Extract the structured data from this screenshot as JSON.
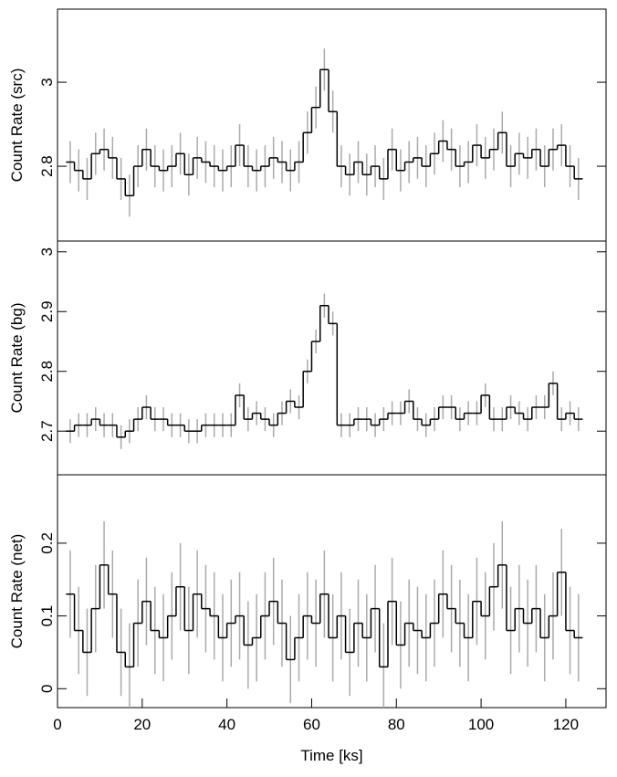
{
  "chart_data": [
    {
      "type": "step",
      "ylabel": "Count Rate (src)",
      "color": "#000000",
      "error_color": "#aaaaaa",
      "error": 0.05,
      "xlim": [
        0,
        129.5
      ],
      "ylim": [
        2.622,
        3.174
      ],
      "yticks": [
        2.8,
        3
      ],
      "x": [
        3,
        5,
        7,
        9,
        11,
        13,
        15,
        17,
        19,
        21,
        23,
        25,
        27,
        29,
        31,
        33,
        35,
        37,
        39,
        41,
        43,
        45,
        47,
        49,
        51,
        53,
        55,
        57,
        59,
        61,
        63,
        65,
        67,
        69,
        71,
        73,
        75,
        77,
        79,
        81,
        83,
        85,
        87,
        89,
        91,
        93,
        95,
        97,
        99,
        101,
        103,
        105,
        107,
        109,
        111,
        113,
        115,
        117,
        119,
        121,
        123
      ],
      "values": [
        2.81,
        2.79,
        2.77,
        2.83,
        2.84,
        2.82,
        2.77,
        2.73,
        2.8,
        2.84,
        2.8,
        2.79,
        2.8,
        2.83,
        2.78,
        2.82,
        2.81,
        2.8,
        2.79,
        2.8,
        2.85,
        2.8,
        2.79,
        2.8,
        2.82,
        2.81,
        2.79,
        2.81,
        2.88,
        2.94,
        3.03,
        2.93,
        2.8,
        2.78,
        2.81,
        2.78,
        2.8,
        2.77,
        2.84,
        2.79,
        2.81,
        2.82,
        2.8,
        2.83,
        2.86,
        2.84,
        2.8,
        2.81,
        2.85,
        2.82,
        2.84,
        2.88,
        2.8,
        2.83,
        2.82,
        2.84,
        2.8,
        2.84,
        2.85,
        2.8,
        2.77
      ]
    },
    {
      "type": "step",
      "ylabel": "Count Rate (bg)",
      "color": "#000000",
      "error_color": "#aaaaaa",
      "error": 0.02,
      "xlim": [
        0,
        129.5
      ],
      "ylim": [
        2.627,
        3.018
      ],
      "yticks": [
        2.7,
        2.8,
        2.9,
        3
      ],
      "x": [
        3,
        5,
        7,
        9,
        11,
        13,
        15,
        17,
        19,
        21,
        23,
        25,
        27,
        29,
        31,
        33,
        35,
        37,
        39,
        41,
        43,
        45,
        47,
        49,
        51,
        53,
        55,
        57,
        59,
        61,
        63,
        65,
        67,
        69,
        71,
        73,
        75,
        77,
        79,
        81,
        83,
        85,
        87,
        89,
        91,
        93,
        95,
        97,
        99,
        101,
        103,
        105,
        107,
        109,
        111,
        113,
        115,
        117,
        119,
        121,
        123
      ],
      "values": [
        2.7,
        2.71,
        2.71,
        2.72,
        2.71,
        2.71,
        2.69,
        2.7,
        2.72,
        2.74,
        2.72,
        2.72,
        2.71,
        2.71,
        2.7,
        2.7,
        2.71,
        2.71,
        2.71,
        2.71,
        2.76,
        2.72,
        2.73,
        2.72,
        2.71,
        2.73,
        2.75,
        2.74,
        2.8,
        2.85,
        2.91,
        2.88,
        2.71,
        2.71,
        2.72,
        2.72,
        2.71,
        2.72,
        2.73,
        2.73,
        2.75,
        2.72,
        2.71,
        2.72,
        2.74,
        2.74,
        2.72,
        2.73,
        2.73,
        2.76,
        2.72,
        2.72,
        2.74,
        2.73,
        2.72,
        2.74,
        2.74,
        2.78,
        2.72,
        2.73,
        2.72
      ]
    },
    {
      "type": "step",
      "ylabel": "Count Rate (net)",
      "xlabel": "Time [ks]",
      "color": "#000000",
      "error_color": "#aaaaaa",
      "error": 0.06,
      "xlim": [
        0,
        129.5
      ],
      "xticks": [
        0,
        20,
        40,
        60,
        80,
        100,
        120
      ],
      "ylim": [
        -0.026,
        0.294
      ],
      "yticks": [
        0,
        0.1,
        0.2
      ],
      "x": [
        3,
        5,
        7,
        9,
        11,
        13,
        15,
        17,
        19,
        21,
        23,
        25,
        27,
        29,
        31,
        33,
        35,
        37,
        39,
        41,
        43,
        45,
        47,
        49,
        51,
        53,
        55,
        57,
        59,
        61,
        63,
        65,
        67,
        69,
        71,
        73,
        75,
        77,
        79,
        81,
        83,
        85,
        87,
        89,
        91,
        93,
        95,
        97,
        99,
        101,
        103,
        105,
        107,
        109,
        111,
        113,
        115,
        117,
        119,
        121,
        123
      ],
      "values": [
        0.13,
        0.08,
        0.05,
        0.11,
        0.17,
        0.13,
        0.05,
        0.03,
        0.09,
        0.12,
        0.08,
        0.07,
        0.1,
        0.14,
        0.08,
        0.13,
        0.11,
        0.1,
        0.07,
        0.09,
        0.1,
        0.06,
        0.07,
        0.1,
        0.12,
        0.09,
        0.04,
        0.07,
        0.1,
        0.09,
        0.13,
        0.07,
        0.1,
        0.05,
        0.09,
        0.07,
        0.11,
        0.03,
        0.12,
        0.06,
        0.09,
        0.08,
        0.07,
        0.09,
        0.13,
        0.11,
        0.09,
        0.07,
        0.12,
        0.1,
        0.14,
        0.17,
        0.08,
        0.11,
        0.09,
        0.11,
        0.07,
        0.1,
        0.16,
        0.08,
        0.07
      ]
    }
  ]
}
